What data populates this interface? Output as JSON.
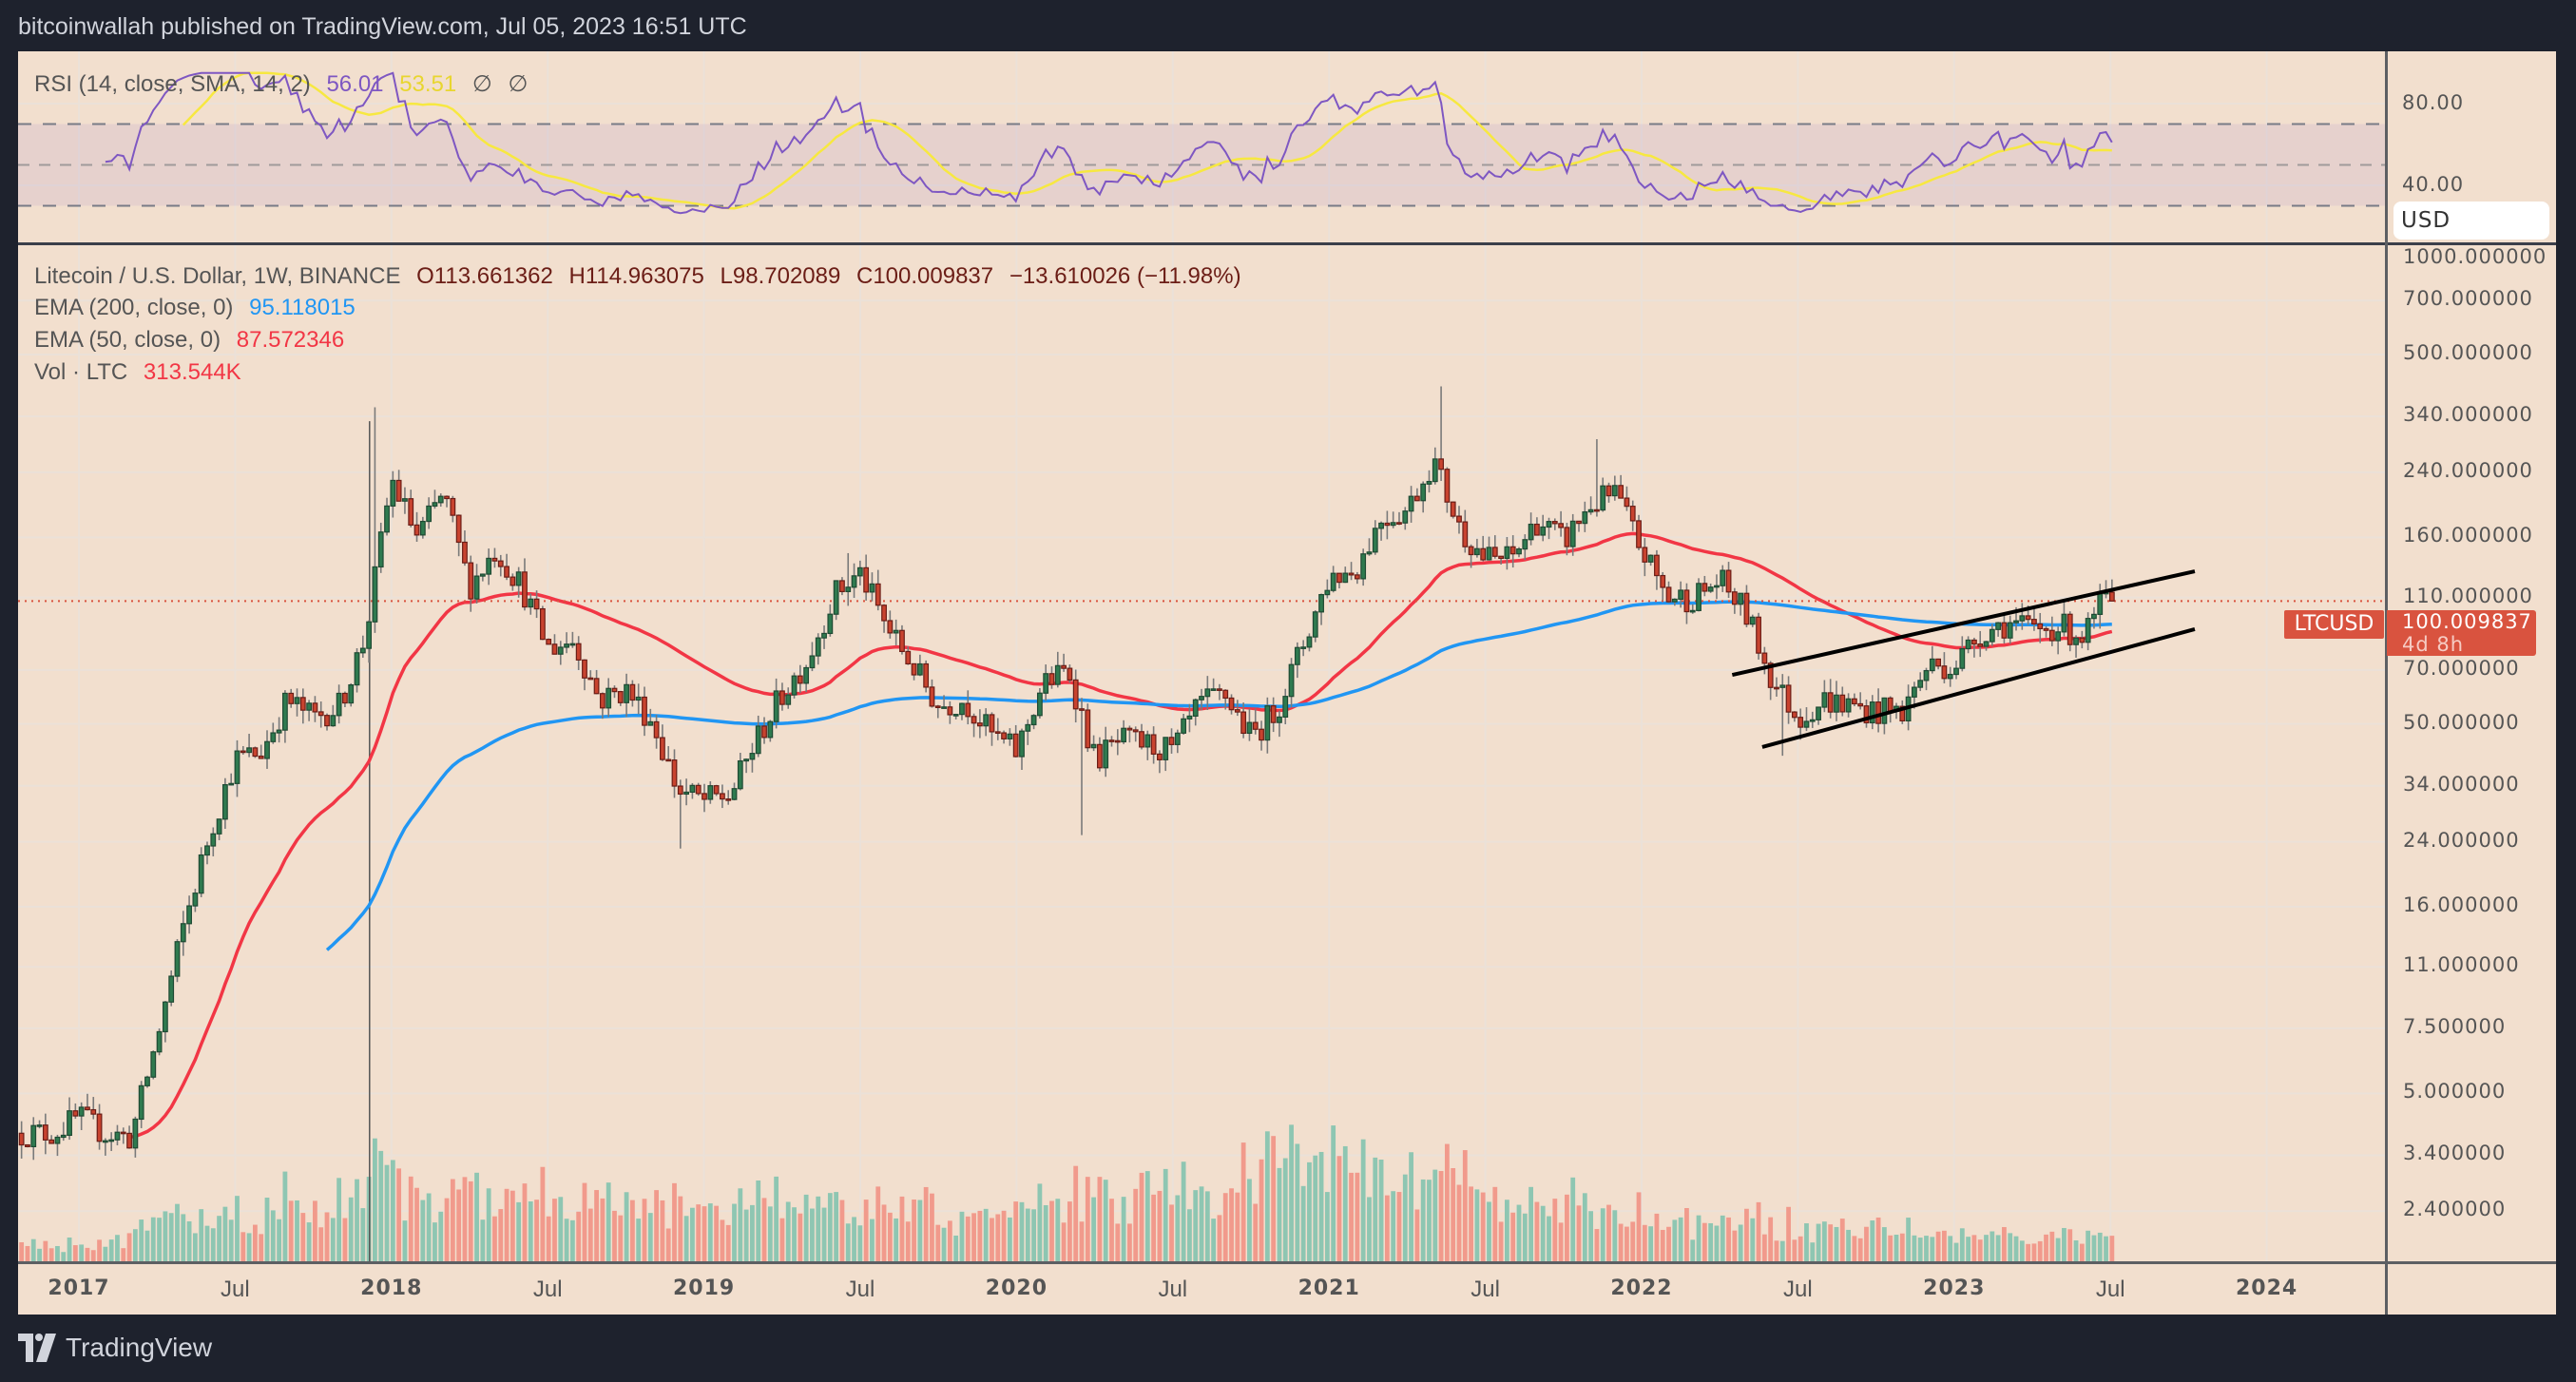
{
  "header": {
    "published": "bitcoinwallah published on TradingView.com, Jul 05, 2023 16:51 UTC"
  },
  "rsi_legend": {
    "title": "RSI (14, close, SMA, 14, 2)",
    "rsi_value": "56.01",
    "sma_value": "53.51",
    "na1": "∅",
    "na2": "∅"
  },
  "legend": {
    "symbol": "Litecoin / U.S. Dollar, 1W, BINANCE",
    "open": "O113.661362",
    "high": "H114.963075",
    "low": "L98.702089",
    "close": "C100.009837",
    "change": "−13.610026 (−11.98%)",
    "ema200_label": "EMA (200, close, 0)",
    "ema200_value": "95.118015",
    "ema50_label": "EMA (50, close, 0)",
    "ema50_value": "87.572346",
    "vol_label": "Vol · LTC",
    "vol_value": "313.544K"
  },
  "price_axis": {
    "currency": "USD",
    "symbol_badge": "LTCUSD",
    "last_price": "100.009837",
    "countdown": "4d 8h",
    "ticks": [
      {
        "v": 1000,
        "label": "1000.000000"
      },
      {
        "v": 700,
        "label": "700.000000"
      },
      {
        "v": 500,
        "label": "500.000000"
      },
      {
        "v": 340,
        "label": "340.000000"
      },
      {
        "v": 240,
        "label": "240.000000"
      },
      {
        "v": 160,
        "label": "160.000000"
      },
      {
        "v": 110,
        "label": "110.000000"
      },
      {
        "v": 70,
        "label": "70.000000"
      },
      {
        "v": 50,
        "label": "50.000000"
      },
      {
        "v": 34,
        "label": "34.000000"
      },
      {
        "v": 24,
        "label": "24.000000"
      },
      {
        "v": 16,
        "label": "16.000000"
      },
      {
        "v": 11,
        "label": "11.000000"
      },
      {
        "v": 7.5,
        "label": "7.500000"
      },
      {
        "v": 5,
        "label": "5.000000"
      },
      {
        "v": 3.4,
        "label": "3.400000"
      },
      {
        "v": 2.4,
        "label": "2.400000"
      }
    ]
  },
  "rsi_axis": {
    "ticks": [
      {
        "v": 80,
        "label": "80.00"
      },
      {
        "v": 40,
        "label": "40.00"
      }
    ],
    "bands": [
      70,
      50,
      30
    ]
  },
  "time_axis": {
    "ticks": [
      {
        "t": 2017,
        "label": "2017",
        "year": true
      },
      {
        "t": 2017.5,
        "label": "Jul",
        "year": false
      },
      {
        "t": 2018,
        "label": "2018",
        "year": true
      },
      {
        "t": 2018.5,
        "label": "Jul",
        "year": false
      },
      {
        "t": 2019,
        "label": "2019",
        "year": true
      },
      {
        "t": 2019.5,
        "label": "Jul",
        "year": false
      },
      {
        "t": 2020,
        "label": "2020",
        "year": true
      },
      {
        "t": 2020.5,
        "label": "Jul",
        "year": false
      },
      {
        "t": 2021,
        "label": "2021",
        "year": true
      },
      {
        "t": 2021.5,
        "label": "Jul",
        "year": false
      },
      {
        "t": 2022,
        "label": "2022",
        "year": true
      },
      {
        "t": 2022.5,
        "label": "Jul",
        "year": false
      },
      {
        "t": 2023,
        "label": "2023",
        "year": true
      },
      {
        "t": 2023.5,
        "label": "Jul",
        "year": false
      },
      {
        "t": 2024,
        "label": "2024",
        "year": true
      }
    ]
  },
  "footer": {
    "brand": "TradingView"
  },
  "colors": {
    "background": "#f2dfce",
    "up": "#2f7a4f",
    "up_border": "#1f4a33",
    "down": "#c8432f",
    "down_border": "#6b1d16",
    "vol_up": "#8ec6b2",
    "vol_down": "#f19a8c",
    "wick": "#7a7a7a",
    "ema200": "#2196f3",
    "ema50": "#f23645",
    "rsi": "#7e57c2",
    "rsi_sma": "#f7e840",
    "last_price": "#d9533f"
  },
  "chart_data": {
    "type": "candlestick",
    "title": "Litecoin / U.S. Dollar, 1W, BINANCE",
    "yscale": "log",
    "ylim": [
      2.1,
      1000
    ],
    "xlim": [
      2016.81,
      2024.4
    ],
    "grid": true,
    "monthly_close_start": "2016-10",
    "monthly_close": [
      3.9,
      3.9,
      4.3,
      3.9,
      3.8,
      7.0,
      14,
      25,
      40,
      42,
      58,
      52,
      56,
      86,
      230,
      160,
      210,
      118,
      148,
      118,
      80,
      84,
      58,
      62,
      51,
      33,
      31,
      32,
      45,
      60,
      75,
      112,
      128,
      92,
      72,
      56,
      58,
      47,
      42,
      64,
      70,
      40,
      45,
      44,
      42,
      56,
      60,
      46,
      55,
      82,
      125,
      130,
      180,
      190,
      260,
      170,
      140,
      140,
      178,
      155,
      195,
      210,
      148,
      110,
      110,
      122,
      100,
      66,
      52,
      58,
      56,
      54,
      54,
      72,
      72,
      88,
      94,
      90,
      92,
      86,
      113.661362
    ],
    "extremes": [
      {
        "t": 2017.95,
        "high": 360
      },
      {
        "t": 2021.36,
        "high": 410
      },
      {
        "t": 2020.2,
        "low": 25
      },
      {
        "t": 2018.92,
        "low": 23
      },
      {
        "t": 2022.45,
        "low": 41
      },
      {
        "t": 2019.46,
        "high": 145
      },
      {
        "t": 2021.85,
        "high": 295
      }
    ],
    "last_bar": {
      "open": 113.661362,
      "high": 114.963075,
      "low": 98.702089,
      "close": 100.009837
    },
    "volume_index_by_year": {
      "2016": 0.1,
      "2017": 0.15,
      "2017.9": 0.6,
      "2018": 0.6,
      "2019": 0.5,
      "2020": 0.45,
      "2021": 0.95,
      "2022": 0.4,
      "2023": 0.25,
      "2023.6": 0.25
    },
    "indicators": {
      "ema_periods": [
        200,
        50
      ],
      "rsi_period": 14,
      "rsi_sma_period": 14
    },
    "trend_channel": [
      {
        "name": "upper",
        "from": [
          2022.29,
          67.9
        ],
        "to": [
          2023.77,
          129.5
        ]
      },
      {
        "name": "lower",
        "from": [
          2022.386,
          43.3
        ],
        "to": [
          2023.77,
          90.3
        ]
      }
    ],
    "vertical_marker_t": 2017.93
  }
}
